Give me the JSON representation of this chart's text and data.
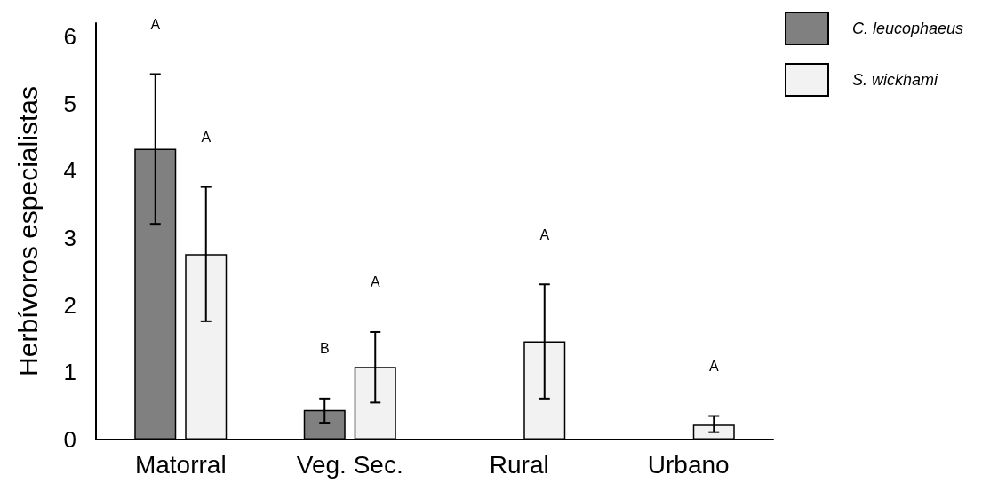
{
  "chart_data": {
    "type": "bar",
    "ylabel": "Herbívoros especialistas",
    "categories": [
      "Matorral",
      "Veg. Sec.",
      "Rural",
      "Urbano"
    ],
    "series": [
      {
        "name": "C. leucophaeus",
        "color": "#808080",
        "values": [
          4.33,
          0.44,
          null,
          null
        ],
        "errors": [
          [
            3.21,
            5.44
          ],
          [
            0.25,
            0.61
          ],
          null,
          null
        ]
      },
      {
        "name": "S. wickhami",
        "color": "#f2f2f2",
        "values": [
          2.76,
          1.08,
          1.46,
          0.22
        ],
        "errors": [
          [
            1.76,
            3.76
          ],
          [
            0.55,
            1.6
          ],
          [
            0.61,
            2.31
          ],
          [
            0.11,
            0.35
          ]
        ]
      }
    ],
    "ylim": [
      0,
      6.2
    ],
    "yticks": [
      0,
      1,
      2,
      3,
      4,
      5,
      6
    ],
    "grid": false,
    "legend": "top right",
    "annotations": [
      "A",
      "A",
      "B",
      "A",
      "A",
      "A"
    ]
  }
}
